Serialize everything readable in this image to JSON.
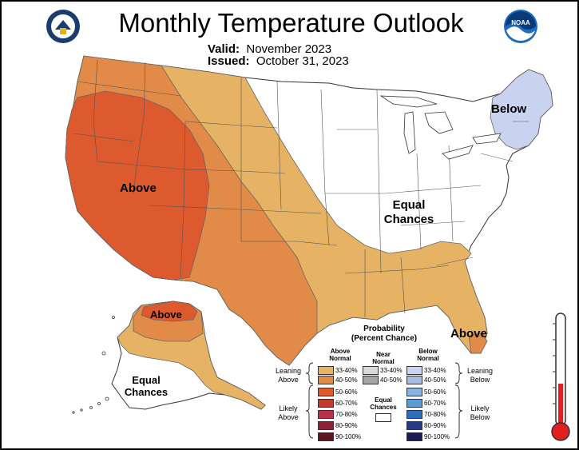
{
  "header": {
    "title": "Monthly Temperature Outlook",
    "valid_label": "Valid:",
    "valid_value": "November 2023",
    "issued_label": "Issued:",
    "issued_value": "October 31, 2023"
  },
  "logos": [
    "department-of-commerce-seal",
    "noaa-logo"
  ],
  "map_labels": {
    "west": "Above",
    "northeast": "Below",
    "equal_main_line1": "Equal",
    "equal_main_line2": "Chances",
    "florida": "Above",
    "alaska_north": "Above",
    "alaska_equal_line1": "Equal",
    "alaska_equal_line2": "Chances"
  },
  "colors": {
    "above_33_40": "#e6b364",
    "above_40_50": "#e28a47",
    "above_50_60": "#dc5a2e",
    "near_33_40": "#d9d9d9",
    "near_40_50": "#a6a6a6",
    "below_33_40": "#c9d2ee",
    "below_40_50": "#a8bde3",
    "below_50_60": "#8bb3e3",
    "below_60_70": "#5b9bd6",
    "below_70_80": "#2e6fc0",
    "below_80_90": "#283b86",
    "below_90_100": "#1c1c55",
    "above_60_70": "#c33a2e",
    "above_70_80": "#b8304a",
    "above_80_90": "#8c2236",
    "above_90_100": "#5c1820"
  },
  "legend": {
    "title_line1": "Probability",
    "title_line2": "(Percent Chance)",
    "col_above_1": "Above",
    "col_above_2": "Normal",
    "col_near_1": "Near",
    "col_near_2": "Normal",
    "col_below_1": "Below",
    "col_below_2": "Normal",
    "leaning_above_1": "Leaning",
    "leaning_above_2": "Above",
    "leaning_below_1": "Leaning",
    "leaning_below_2": "Below",
    "likely_above_1": "Likely",
    "likely_above_2": "Above",
    "likely_below_1": "Likely",
    "likely_below_2": "Below",
    "equal_1": "Equal",
    "equal_2": "Chances",
    "ranges": [
      "33-40%",
      "40-50%",
      "50-60%",
      "60-70%",
      "70-80%",
      "80-90%",
      "90-100%"
    ],
    "near_ranges": [
      "33-40%",
      "40-50%"
    ]
  },
  "thermometer": {
    "icon": "thermometer-icon"
  }
}
